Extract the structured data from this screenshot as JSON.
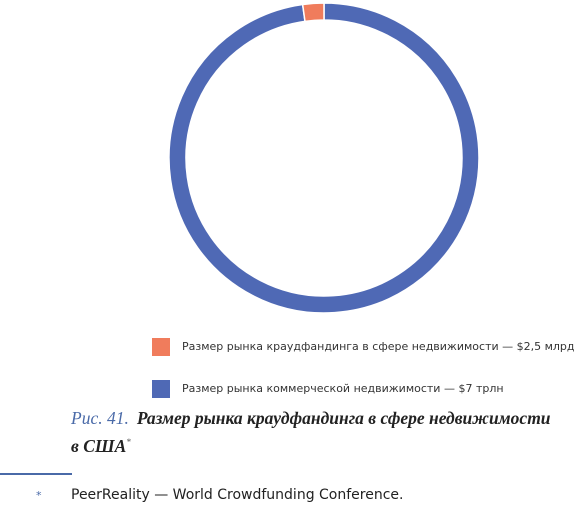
{
  "chart_data": {
    "type": "pie",
    "donut": true,
    "categories": [
      "Размер рынка краудфандинга в сфере недвижимости — $2,5 млрд",
      "Размер рынка коммерческой недвижимости — $7 трлн"
    ],
    "values": [
      2.2,
      97.8
    ],
    "colors": [
      "#f07c5c",
      "#4f69b5"
    ]
  },
  "figure": {
    "label": "Рис. 41.",
    "caption": [
      "Размер рынка краудфандинга в сфере недвижимости",
      "в США"
    ]
  },
  "footnote": {
    "marker": "*",
    "text": "PeerReality — World Crowdfunding Conference."
  }
}
